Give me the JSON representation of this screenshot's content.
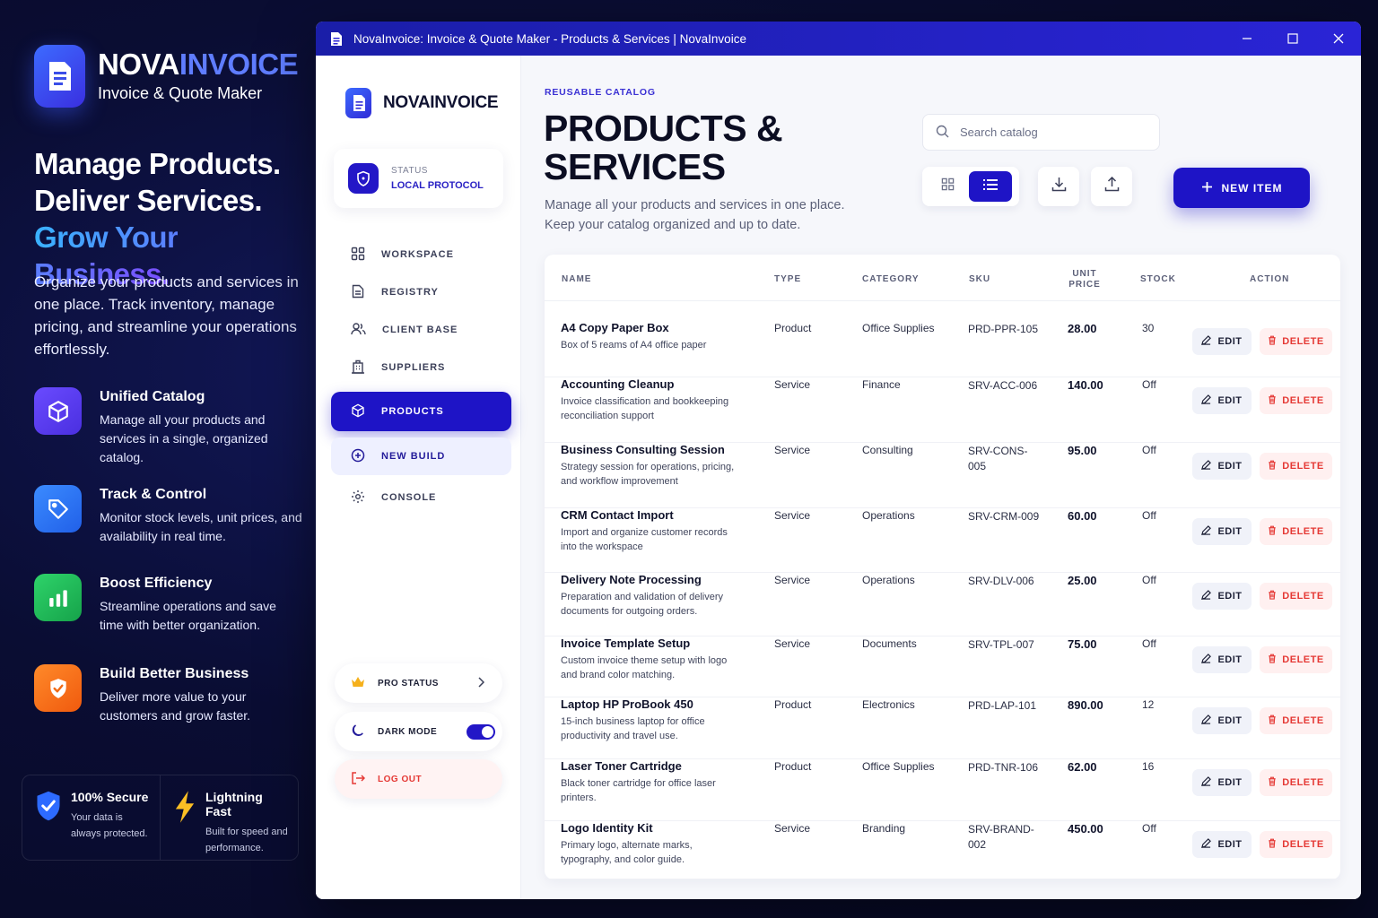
{
  "promo": {
    "brand_a": "NOVA",
    "brand_b": "INVOICE",
    "brand_sub": "Invoice & Quote Maker",
    "hero_1": "Manage Products.",
    "hero_2": "Deliver Services.",
    "hero_3": "Grow Your Business.",
    "description": "Organize your products and services in one place. Track inventory, manage pricing, and streamline your operations effortlessly.",
    "features": [
      {
        "title": "Unified Catalog",
        "text": "Manage all your products and services in a single, organized catalog.",
        "icon": "cube-icon",
        "color": "#5b3df5"
      },
      {
        "title": "Track & Control",
        "text": "Monitor stock levels, unit prices, and availability in real time.",
        "icon": "tag-icon",
        "color": "#2d7bff"
      },
      {
        "title": "Boost Efficiency",
        "text": "Streamline operations and save time with better organization.",
        "icon": "bar-chart-icon",
        "color": "#22c55e"
      },
      {
        "title": "Build Better Business",
        "text": "Deliver more value to your customers and grow faster.",
        "icon": "shield-check-icon",
        "color": "#f97316"
      }
    ],
    "badges": [
      {
        "title": "100% Secure",
        "text": "Your data is always protected."
      },
      {
        "title": "Lightning Fast",
        "text": "Built for speed and performance."
      }
    ]
  },
  "window": {
    "title": "NovaInvoice: Invoice & Quote Maker - Products & Services | NovaInvoice"
  },
  "sidebar": {
    "brand": "NOVAINVOICE",
    "status_label": "STATUS",
    "status_value": "LOCAL PROTOCOL",
    "nav": [
      {
        "label": "WORKSPACE",
        "icon": "grid-icon"
      },
      {
        "label": "REGISTRY",
        "icon": "document-icon"
      },
      {
        "label": "CLIENT BASE",
        "icon": "users-icon"
      },
      {
        "label": "SUPPLIERS",
        "icon": "building-icon"
      },
      {
        "label": "PRODUCTS",
        "icon": "box-icon",
        "active": true
      },
      {
        "label": "NEW BUILD",
        "icon": "plus-circle-icon"
      },
      {
        "label": "CONSOLE",
        "icon": "gear-icon"
      }
    ],
    "pro_status": "PRO STATUS",
    "dark_mode": "DARK MODE",
    "dark_mode_on": true,
    "logout": "LOG OUT"
  },
  "main": {
    "eyebrow": "REUSABLE CATALOG",
    "title_1": "PRODUCTS &",
    "title_2": "SERVICES",
    "description": "Manage all your products and services in one place. Keep your catalog organized and up to date.",
    "search_placeholder": "Search catalog",
    "new_item": "NEW ITEM",
    "accent": "#1e14c6"
  },
  "table": {
    "headers": {
      "name": "NAME",
      "type": "TYPE",
      "category": "CATEGORY",
      "sku": "SKU",
      "unit_price_1": "UNIT",
      "unit_price_2": "PRICE",
      "stock": "STOCK",
      "action": "ACTION"
    },
    "edit_label": "EDIT",
    "delete_label": "DELETE",
    "rows": [
      {
        "name": "A4 Copy Paper Box",
        "desc": "Box of 5 reams of A4 office paper",
        "type": "Product",
        "category": "Office Supplies",
        "sku": "PRD-PPR-105",
        "price": "28.00",
        "stock": "30"
      },
      {
        "name": "Accounting Cleanup",
        "desc": "Invoice classification and bookkeeping reconciliation support",
        "type": "Service",
        "category": "Finance",
        "sku": "SRV-ACC-006",
        "price": "140.00",
        "stock": "Off"
      },
      {
        "name": "Business Consulting Session",
        "desc": "Strategy session for operations, pricing, and workflow improvement",
        "type": "Service",
        "category": "Consulting",
        "sku": "SRV-CONS-005",
        "price": "95.00",
        "stock": "Off"
      },
      {
        "name": "CRM Contact Import",
        "desc": "Import and organize customer records into the workspace",
        "type": "Service",
        "category": "Operations",
        "sku": "SRV-CRM-009",
        "price": "60.00",
        "stock": "Off"
      },
      {
        "name": "Delivery Note Processing",
        "desc": "Preparation and validation of delivery documents for outgoing orders.",
        "type": "Service",
        "category": "Operations",
        "sku": "SRV-DLV-006",
        "price": "25.00",
        "stock": "Off"
      },
      {
        "name": "Invoice Template Setup",
        "desc": "Custom invoice theme setup with logo and brand color matching.",
        "type": "Service",
        "category": "Documents",
        "sku": "SRV-TPL-007",
        "price": "75.00",
        "stock": "Off"
      },
      {
        "name": "Laptop HP ProBook 450",
        "desc": "15-inch business laptop for office productivity and travel use.",
        "type": "Product",
        "category": "Electronics",
        "sku": "PRD-LAP-101",
        "price": "890.00",
        "stock": "12"
      },
      {
        "name": "Laser Toner Cartridge",
        "desc": "Black toner cartridge for office laser printers.",
        "type": "Product",
        "category": "Office Supplies",
        "sku": "PRD-TNR-106",
        "price": "62.00",
        "stock": "16"
      },
      {
        "name": "Logo Identity Kit",
        "desc": "Primary logo, alternate marks, typography, and color guide.",
        "type": "Service",
        "category": "Branding",
        "sku": "SRV-BRAND-002",
        "price": "450.00",
        "stock": "Off"
      }
    ]
  }
}
